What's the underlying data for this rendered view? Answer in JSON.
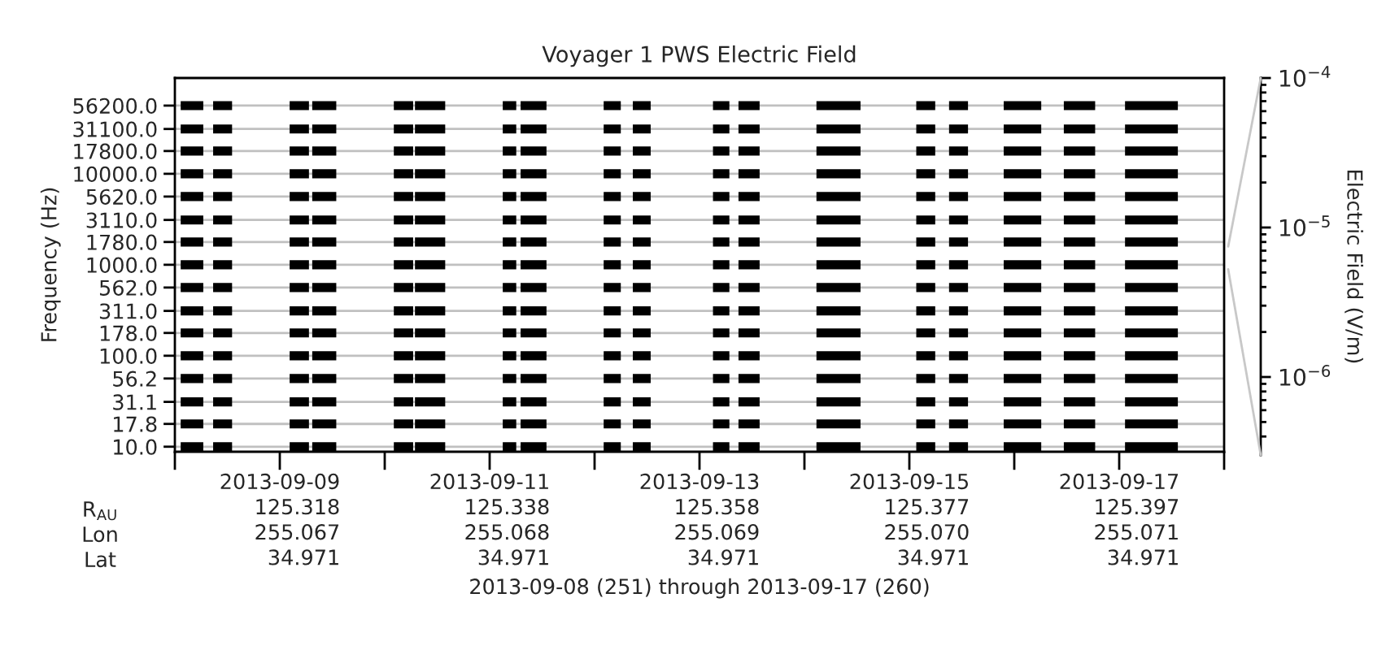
{
  "chart_data": [
    {
      "type": "line",
      "title": "Voyager 1 PWS Electric Field",
      "xlabel": "2013-09-08 (251) through 2013-09-17 (260)",
      "ylabel": "Frequency (Hz)",
      "annotations": [
        "R$_{AU}$",
        "Lon",
        "Lat"
      ],
      "xlim": [
        "2013-09-08",
        "2013-09-18"
      ],
      "xticks": [
        {
          "value": "2013-09-08",
          "label": null
        },
        {
          "value": "2013-09-09",
          "label": "2013-09-09\n125.318\n255.067\n34.971"
        },
        {
          "value": "2013-09-10",
          "label": null
        },
        {
          "value": "2013-09-11",
          "label": "2013-09-11\n125.338\n255.068\n34.971"
        },
        {
          "value": "2013-09-12",
          "label": null
        },
        {
          "value": "2013-09-13",
          "label": "2013-09-13\n125.358\n255.069\n34.971"
        },
        {
          "value": "2013-09-14",
          "label": null
        },
        {
          "value": "2013-09-15",
          "label": "2013-09-15\n125.377\n255.070\n34.971"
        },
        {
          "value": "2013-09-16",
          "label": null
        },
        {
          "value": "2013-09-17",
          "label": "2013-09-17\n125.397\n255.071\n34.971"
        },
        {
          "value": "2013-09-18",
          "label": null
        }
      ],
      "ylim": [
        8.8,
        113000
      ],
      "yticks": [
        {
          "value": 56200,
          "label": "56200.0"
        },
        {
          "value": 31100,
          "label": "31100.0"
        },
        {
          "value": 17800,
          "label": "17800.0"
        },
        {
          "value": 10000,
          "label": "10000.0"
        },
        {
          "value": 5620,
          "label": "5620.0"
        },
        {
          "value": 3110,
          "label": "3110.0"
        },
        {
          "value": 1780,
          "label": "1780.0"
        },
        {
          "value": 1000,
          "label": "1000.0"
        },
        {
          "value": 562,
          "label": "562.0"
        },
        {
          "value": 311,
          "label": "311.0"
        },
        {
          "value": 178,
          "label": "178.0"
        },
        {
          "value": 100,
          "label": "100.0"
        },
        {
          "value": 56.2,
          "label": "56.2"
        },
        {
          "value": 31.1,
          "label": "31.1"
        },
        {
          "value": 17.8,
          "label": "17.8"
        },
        {
          "value": 10,
          "label": "10.0"
        }
      ],
      "log": "y",
      "grid": "y",
      "x": [
        "2013-09-08T01:20",
        "2013-09-08T06:30",
        null,
        "2013-09-08T08:45",
        "2013-09-08T13:05",
        null,
        "2013-09-09T02:15",
        "2013-09-09T06:40",
        null,
        "2013-09-09T07:25",
        "2013-09-09T12:55",
        null,
        "2013-09-10T02:05",
        "2013-09-10T06:30",
        null,
        "2013-09-10T06:55",
        "2013-09-10T13:50",
        null,
        "2013-09-11T03:00",
        "2013-09-11T06:05",
        null,
        "2013-09-11T07:05",
        "2013-09-11T13:00",
        null,
        "2013-09-12T02:05",
        "2013-09-12T06:00",
        null,
        "2013-09-12T08:45",
        "2013-09-12T12:50",
        null,
        "2013-09-13T03:05",
        "2013-09-13T06:50",
        null,
        "2013-09-13T08:55",
        "2013-09-13T13:45",
        null,
        "2013-09-14T02:45",
        "2013-09-14T12:50",
        null,
        "2013-09-15T01:35",
        "2013-09-15T05:55",
        null,
        "2013-09-15T09:05",
        "2013-09-15T13:25",
        null,
        "2013-09-15T21:35",
        "2013-09-16T06:10",
        null,
        "2013-09-16T11:20",
        "2013-09-16T18:30",
        null,
        "2013-09-17T01:20",
        "2013-09-17T13:25"
      ],
      "series": [
        {
          "color": "#000000",
          "values": [
            56200,
            56200,
            null,
            56200,
            56200,
            null,
            56200,
            56200,
            null,
            56200,
            56200,
            null,
            56200,
            56200,
            null,
            56200,
            56200,
            null,
            56200,
            56200,
            null,
            56200,
            56200,
            null,
            56200,
            56200,
            null,
            56200,
            56200,
            null,
            56200,
            56200,
            null,
            56200,
            56200,
            null,
            56200,
            56200,
            null,
            56200,
            56200,
            null,
            56200,
            56200,
            null,
            56200,
            56200,
            null,
            56200,
            56200,
            null,
            56200,
            56200
          ]
        },
        {
          "color": "#000000",
          "values": [
            31100,
            31100,
            null,
            31100,
            31100,
            null,
            31100,
            31100,
            null,
            31100,
            31100,
            null,
            31100,
            31100,
            null,
            31100,
            31100,
            null,
            31100,
            31100,
            null,
            31100,
            31100,
            null,
            31100,
            31100,
            null,
            31100,
            31100,
            null,
            31100,
            31100,
            null,
            31100,
            31100,
            null,
            31100,
            31100,
            null,
            31100,
            31100,
            null,
            31100,
            31100,
            null,
            31100,
            31100,
            null,
            31100,
            31100,
            null,
            31100,
            31100
          ]
        },
        {
          "color": "#000000",
          "values": [
            17800,
            17800,
            null,
            17800,
            17800,
            null,
            17800,
            17800,
            null,
            17800,
            17800,
            null,
            17800,
            17800,
            null,
            17800,
            17800,
            null,
            17800,
            17800,
            null,
            17800,
            17800,
            null,
            17800,
            17800,
            null,
            17800,
            17800,
            null,
            17800,
            17800,
            null,
            17800,
            17800,
            null,
            17800,
            17800,
            null,
            17800,
            17800,
            null,
            17800,
            17800,
            null,
            17800,
            17800,
            null,
            17800,
            17800,
            null,
            17800,
            17800
          ]
        },
        {
          "color": "#000000",
          "values": [
            10000,
            10000,
            null,
            10000,
            10000,
            null,
            10000,
            10000,
            null,
            10000,
            10000,
            null,
            10000,
            10000,
            null,
            10000,
            10000,
            null,
            10000,
            10000,
            null,
            10000,
            10000,
            null,
            10000,
            10000,
            null,
            10000,
            10000,
            null,
            10000,
            10000,
            null,
            10000,
            10000,
            null,
            10000,
            10000,
            null,
            10000,
            10000,
            null,
            10000,
            10000,
            null,
            10000,
            10000,
            null,
            10000,
            10000,
            null,
            10000,
            10000
          ]
        },
        {
          "color": "#000000",
          "values": [
            5620,
            5620,
            null,
            5620,
            5620,
            null,
            5620,
            5620,
            null,
            5620,
            5620,
            null,
            5620,
            5620,
            null,
            5620,
            5620,
            null,
            5620,
            5620,
            null,
            5620,
            5620,
            null,
            5620,
            5620,
            null,
            5620,
            5620,
            null,
            5620,
            5620,
            null,
            5620,
            5620,
            null,
            5620,
            5620,
            null,
            5620,
            5620,
            null,
            5620,
            5620,
            null,
            5620,
            5620,
            null,
            5620,
            5620,
            null,
            5620,
            5620
          ]
        },
        {
          "color": "#000000",
          "values": [
            3110,
            3110,
            null,
            3110,
            3110,
            null,
            3110,
            3110,
            null,
            3110,
            3110,
            null,
            3110,
            3110,
            null,
            3110,
            3110,
            null,
            3110,
            3110,
            null,
            3110,
            3110,
            null,
            3110,
            3110,
            null,
            3110,
            3110,
            null,
            3110,
            3110,
            null,
            3110,
            3110,
            null,
            3110,
            3110,
            null,
            3110,
            3110,
            null,
            3110,
            3110,
            null,
            3110,
            3110,
            null,
            3110,
            3110,
            null,
            3110,
            3110
          ]
        },
        {
          "color": "#000000",
          "values": [
            1780,
            1780,
            null,
            1780,
            1780,
            null,
            1780,
            1780,
            null,
            1780,
            1780,
            null,
            1780,
            1780,
            null,
            1780,
            1780,
            null,
            1780,
            1780,
            null,
            1780,
            1780,
            null,
            1780,
            1780,
            null,
            1780,
            1780,
            null,
            1780,
            1780,
            null,
            1780,
            1780,
            null,
            1780,
            1780,
            null,
            1780,
            1780,
            null,
            1780,
            1780,
            null,
            1780,
            1780,
            null,
            1780,
            1780,
            null,
            1780,
            1780
          ]
        },
        {
          "color": "#000000",
          "values": [
            1000,
            1000,
            null,
            1000,
            1000,
            null,
            1000,
            1000,
            null,
            1000,
            1000,
            null,
            1000,
            1000,
            null,
            1000,
            1000,
            null,
            1000,
            1000,
            null,
            1000,
            1000,
            null,
            1000,
            1000,
            null,
            1000,
            1000,
            null,
            1000,
            1000,
            null,
            1000,
            1000,
            null,
            1000,
            1000,
            null,
            1000,
            1000,
            null,
            1000,
            1000,
            null,
            1000,
            1000,
            null,
            1000,
            1000,
            null,
            1000,
            1000
          ]
        },
        {
          "color": "#000000",
          "values": [
            562,
            562,
            null,
            562,
            562,
            null,
            562,
            562,
            null,
            562,
            562,
            null,
            562,
            562,
            null,
            562,
            562,
            null,
            562,
            562,
            null,
            562,
            562,
            null,
            562,
            562,
            null,
            562,
            562,
            null,
            562,
            562,
            null,
            562,
            562,
            null,
            562,
            562,
            null,
            562,
            562,
            null,
            562,
            562,
            null,
            562,
            562,
            null,
            562,
            562,
            null,
            562,
            562
          ]
        },
        {
          "color": "#000000",
          "values": [
            311,
            311,
            null,
            311,
            311,
            null,
            311,
            311,
            null,
            311,
            311,
            null,
            311,
            311,
            null,
            311,
            311,
            null,
            311,
            311,
            null,
            311,
            311,
            null,
            311,
            311,
            null,
            311,
            311,
            null,
            311,
            311,
            null,
            311,
            311,
            null,
            311,
            311,
            null,
            311,
            311,
            null,
            311,
            311,
            null,
            311,
            311,
            null,
            311,
            311,
            null,
            311,
            311
          ]
        },
        {
          "color": "#000000",
          "values": [
            178,
            178,
            null,
            178,
            178,
            null,
            178,
            178,
            null,
            178,
            178,
            null,
            178,
            178,
            null,
            178,
            178,
            null,
            178,
            178,
            null,
            178,
            178,
            null,
            178,
            178,
            null,
            178,
            178,
            null,
            178,
            178,
            null,
            178,
            178,
            null,
            178,
            178,
            null,
            178,
            178,
            null,
            178,
            178,
            null,
            178,
            178,
            null,
            178,
            178,
            null,
            178,
            178
          ]
        },
        {
          "color": "#000000",
          "values": [
            100,
            100,
            null,
            100,
            100,
            null,
            100,
            100,
            null,
            100,
            100,
            null,
            100,
            100,
            null,
            100,
            100,
            null,
            100,
            100,
            null,
            100,
            100,
            null,
            100,
            100,
            null,
            100,
            100,
            null,
            100,
            100,
            null,
            100,
            100,
            null,
            100,
            100,
            null,
            100,
            100,
            null,
            100,
            100,
            null,
            100,
            100,
            null,
            100,
            100,
            null,
            100,
            100
          ]
        },
        {
          "color": "#000000",
          "values": [
            56.2,
            56.2,
            null,
            56.2,
            56.2,
            null,
            56.2,
            56.2,
            null,
            56.2,
            56.2,
            null,
            56.2,
            56.2,
            null,
            56.2,
            56.2,
            null,
            56.2,
            56.2,
            null,
            56.2,
            56.2,
            null,
            56.2,
            56.2,
            null,
            56.2,
            56.2,
            null,
            56.2,
            56.2,
            null,
            56.2,
            56.2,
            null,
            56.2,
            56.2,
            null,
            56.2,
            56.2,
            null,
            56.2,
            56.2,
            null,
            56.2,
            56.2,
            null,
            56.2,
            56.2,
            null,
            56.2,
            56.2
          ]
        },
        {
          "color": "#000000",
          "values": [
            31.1,
            31.1,
            null,
            31.1,
            31.1,
            null,
            31.1,
            31.1,
            null,
            31.1,
            31.1,
            null,
            31.1,
            31.1,
            null,
            31.1,
            31.1,
            null,
            31.1,
            31.1,
            null,
            31.1,
            31.1,
            null,
            31.1,
            31.1,
            null,
            31.1,
            31.1,
            null,
            31.1,
            31.1,
            null,
            31.1,
            31.1,
            null,
            31.1,
            31.1,
            null,
            31.1,
            31.1,
            null,
            31.1,
            31.1,
            null,
            31.1,
            31.1,
            null,
            31.1,
            31.1,
            null,
            31.1,
            31.1
          ]
        },
        {
          "color": "#000000",
          "values": [
            17.8,
            17.8,
            null,
            17.8,
            17.8,
            null,
            17.8,
            17.8,
            null,
            17.8,
            17.8,
            null,
            17.8,
            17.8,
            null,
            17.8,
            17.8,
            null,
            17.8,
            17.8,
            null,
            17.8,
            17.8,
            null,
            17.8,
            17.8,
            null,
            17.8,
            17.8,
            null,
            17.8,
            17.8,
            null,
            17.8,
            17.8,
            null,
            17.8,
            17.8,
            null,
            17.8,
            17.8,
            null,
            17.8,
            17.8,
            null,
            17.8,
            17.8,
            null,
            17.8,
            17.8,
            null,
            17.8,
            17.8
          ]
        },
        {
          "color": "#000000",
          "values": [
            10,
            10,
            null,
            10,
            10,
            null,
            10,
            10,
            null,
            10,
            10,
            null,
            10,
            10,
            null,
            10,
            10,
            null,
            10,
            10,
            null,
            10,
            10,
            null,
            10,
            10,
            null,
            10,
            10,
            null,
            10,
            10,
            null,
            10,
            10,
            null,
            10,
            10,
            null,
            10,
            10,
            null,
            10,
            10,
            null,
            10,
            10,
            null,
            10,
            10,
            null,
            10,
            10
          ]
        }
      ]
    },
    {
      "type": "other",
      "ylabel": "Electric Field (V/m)",
      "annotations": [
        "10$^{−4}$",
        "10$^{−5}$",
        "10$^{−6}$"
      ]
    }
  ]
}
